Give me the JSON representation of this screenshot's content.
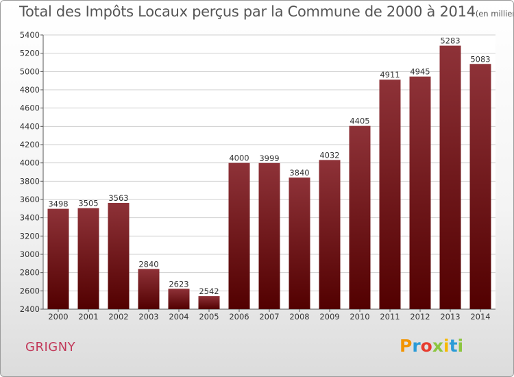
{
  "title": "Total des Impôts Locaux perçus par la Commune de 2000 à 2014",
  "unit_label": "(en milliers d'€)",
  "commune": "GRIGNY",
  "logo": {
    "letters": [
      "P",
      "r",
      "o",
      "x",
      "i",
      "t",
      "i"
    ],
    "colors": [
      "#f29400",
      "#2a9bd7",
      "#e73c2f",
      "#8cc63f",
      "#f7b900",
      "#2a9bd7",
      "#8cc63f"
    ]
  },
  "chart_data": {
    "type": "bar",
    "categories": [
      "2000",
      "2001",
      "2002",
      "2003",
      "2004",
      "2005",
      "2006",
      "2007",
      "2008",
      "2009",
      "2010",
      "2011",
      "2012",
      "2013",
      "2014"
    ],
    "values": [
      3498,
      3505,
      3563,
      2840,
      2623,
      2542,
      4000,
      3999,
      3840,
      4032,
      4405,
      4911,
      4945,
      5283,
      5083
    ],
    "value_labels": [
      "3498",
      "3505",
      "3563",
      "2840",
      "2623",
      "2542",
      "4000",
      "3999",
      "3840",
      "4032",
      "4405",
      "4911",
      "4945",
      "5283",
      "5083"
    ],
    "ylim": [
      2400,
      5400
    ],
    "y_ticks": [
      "2400",
      "2600",
      "2800",
      "3000",
      "3200",
      "3400",
      "3600",
      "3800",
      "4000",
      "4200",
      "4400",
      "4600",
      "4800",
      "5000",
      "5200",
      "5400"
    ],
    "grid": true,
    "bar_color_top": "#8e3238",
    "bar_color_bottom": "#520000"
  }
}
